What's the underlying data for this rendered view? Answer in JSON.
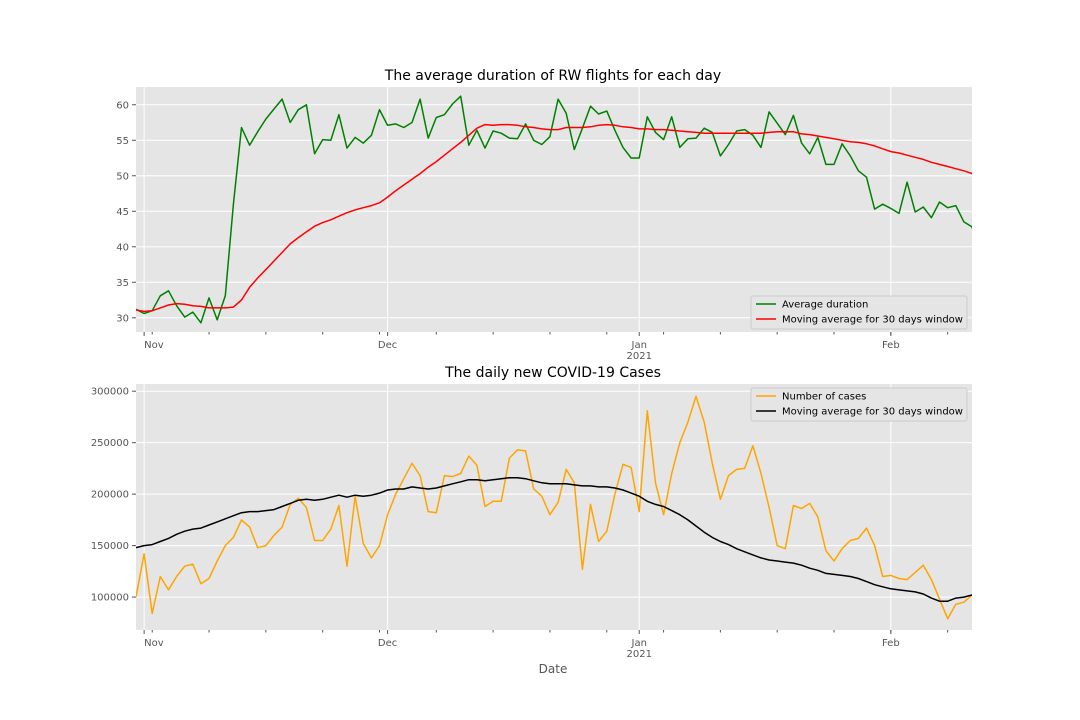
{
  "chart_data": [
    {
      "type": "line",
      "title": "The average duration of RW flights for each day",
      "xlabel": "",
      "ylabel": "",
      "x_range": [
        "2020-10-31",
        "2021-02-11"
      ],
      "ylim": [
        28,
        62.5
      ],
      "yticks": [
        30,
        35,
        40,
        45,
        50,
        55,
        60
      ],
      "xticks": [
        {
          "date": "2020-11-01",
          "label": "Nov",
          "sub": ""
        },
        {
          "date": "2020-12-01",
          "label": "Dec",
          "sub": ""
        },
        {
          "date": "2021-01-01",
          "label": "Jan",
          "sub": "2021"
        },
        {
          "date": "2021-02-01",
          "label": "Feb",
          "sub": ""
        }
      ],
      "grid": true,
      "legend": "lower-right",
      "start_date": "2020-10-31",
      "series": [
        {
          "name": "Average duration",
          "color": "#008000",
          "values": [
            31.2,
            30.6,
            31.0,
            33.1,
            33.8,
            31.7,
            30.1,
            30.8,
            29.3,
            32.8,
            29.7,
            33.1,
            46.0,
            56.8,
            54.3,
            56.2,
            58.0,
            59.4,
            60.8,
            57.5,
            59.3,
            60.0,
            53.1,
            55.1,
            55.0,
            58.6,
            53.9,
            55.4,
            54.6,
            55.7,
            59.3,
            57.1,
            57.3,
            56.8,
            57.5,
            60.8,
            55.3,
            58.2,
            58.6,
            60.1,
            61.2,
            54.3,
            56.4,
            53.9,
            56.3,
            56.0,
            55.3,
            55.2,
            57.3,
            55.0,
            54.4,
            55.5,
            60.8,
            58.8,
            53.7,
            56.7,
            59.8,
            58.7,
            59.1,
            56.4,
            54.0,
            52.5,
            52.5,
            58.3,
            56.1,
            55.1,
            58.3,
            54.0,
            55.2,
            55.3,
            56.7,
            56.1,
            52.8,
            54.4,
            56.3,
            56.5,
            55.7,
            54.0,
            59.0,
            57.4,
            55.8,
            58.5,
            54.6,
            53.1,
            55.4,
            51.6,
            51.6,
            54.5,
            52.8,
            50.7,
            49.8,
            45.3,
            46.0,
            45.4,
            44.7,
            49.1,
            44.9,
            45.6,
            44.1,
            46.3,
            45.5,
            45.8,
            43.5,
            42.8,
            39.3
          ]
        },
        {
          "name": "Moving average for 30 days window",
          "color": "#ff0000",
          "values": [
            31.1,
            30.9,
            31.0,
            31.4,
            31.8,
            32.0,
            31.9,
            31.7,
            31.6,
            31.4,
            31.4,
            31.4,
            31.5,
            32.5,
            34.3,
            35.6,
            36.8,
            38.0,
            39.2,
            40.4,
            41.3,
            42.1,
            42.9,
            43.4,
            43.8,
            44.3,
            44.8,
            45.2,
            45.5,
            45.8,
            46.2,
            47.0,
            47.9,
            48.7,
            49.5,
            50.3,
            51.2,
            52.0,
            52.9,
            53.8,
            54.7,
            55.7,
            56.7,
            57.2,
            57.1,
            57.2,
            57.2,
            57.1,
            56.9,
            56.8,
            56.6,
            56.5,
            56.5,
            56.8,
            56.8,
            56.8,
            56.9,
            57.1,
            57.2,
            57.1,
            56.9,
            56.8,
            56.6,
            56.6,
            56.5,
            56.5,
            56.4,
            56.3,
            56.2,
            56.1,
            56.0,
            56.0,
            56.0,
            56.0,
            56.0,
            56.0,
            56.0,
            56.0,
            56.1,
            56.2,
            56.2,
            56.2,
            55.9,
            55.8,
            55.6,
            55.4,
            55.2,
            55.0,
            54.8,
            54.7,
            54.5,
            54.2,
            53.8,
            53.4,
            53.2,
            52.9,
            52.6,
            52.3,
            51.9,
            51.6,
            51.3,
            51.0,
            50.7,
            50.3,
            49.9
          ]
        }
      ]
    },
    {
      "type": "line",
      "title": "The daily new COVID-19 Cases",
      "xlabel": "Date",
      "ylabel": "",
      "x_range": [
        "2020-10-31",
        "2021-02-11"
      ],
      "ylim": [
        68000,
        307000
      ],
      "yticks": [
        100000,
        150000,
        200000,
        250000,
        300000
      ],
      "xticks": [
        {
          "date": "2020-11-01",
          "label": "Nov",
          "sub": ""
        },
        {
          "date": "2020-12-01",
          "label": "Dec",
          "sub": ""
        },
        {
          "date": "2021-01-01",
          "label": "Jan",
          "sub": "2021"
        },
        {
          "date": "2021-02-01",
          "label": "Feb",
          "sub": ""
        }
      ],
      "grid": true,
      "legend": "upper-right",
      "start_date": "2020-10-31",
      "series": [
        {
          "name": "Number of cases",
          "color": "#ffa500",
          "values": [
            100000,
            142000,
            84000,
            120000,
            107000,
            120000,
            130000,
            132000,
            113000,
            118000,
            135000,
            150000,
            158000,
            175000,
            168000,
            148000,
            150000,
            160000,
            168000,
            190000,
            196000,
            187000,
            155000,
            155000,
            166000,
            189000,
            130000,
            198000,
            152000,
            138000,
            150000,
            180000,
            200000,
            215000,
            230000,
            218000,
            183000,
            182000,
            218000,
            217000,
            220000,
            237000,
            228000,
            188000,
            193000,
            193000,
            235000,
            243000,
            242000,
            205000,
            198000,
            180000,
            192000,
            224000,
            211000,
            127000,
            190000,
            154000,
            164000,
            200000,
            229000,
            226000,
            183000,
            281000,
            211000,
            180000,
            220000,
            250000,
            270000,
            295000,
            270000,
            230000,
            195000,
            218000,
            224000,
            225000,
            247000,
            220000,
            187000,
            150000,
            147000,
            189000,
            186000,
            191000,
            178000,
            145000,
            135000,
            147000,
            155000,
            157000,
            167000,
            150000,
            120000,
            121000,
            118000,
            117000,
            124000,
            131000,
            117000,
            98000,
            79000,
            93000,
            95000,
            102000,
            101000
          ]
        },
        {
          "name": "Moving average for 30 days window",
          "color": "#000000",
          "values": [
            148000,
            150000,
            151000,
            154000,
            157000,
            161000,
            164000,
            166000,
            167000,
            170000,
            173000,
            176000,
            179000,
            182000,
            183000,
            183000,
            184000,
            185000,
            188000,
            191000,
            194000,
            195000,
            194000,
            195000,
            197000,
            199000,
            197000,
            199000,
            198000,
            199000,
            201000,
            204000,
            205000,
            205000,
            207000,
            206000,
            205000,
            206000,
            208000,
            210000,
            212000,
            214000,
            214000,
            213000,
            214000,
            215000,
            216000,
            216000,
            215000,
            213000,
            211000,
            210000,
            210000,
            210000,
            209000,
            208000,
            208000,
            207000,
            207000,
            206000,
            204000,
            201000,
            198000,
            193000,
            190000,
            188000,
            184000,
            180000,
            175000,
            169000,
            163000,
            158000,
            154000,
            151000,
            147000,
            144000,
            141000,
            138000,
            136000,
            135000,
            134000,
            133000,
            131000,
            128000,
            126000,
            123000,
            122000,
            121000,
            120000,
            118000,
            115000,
            112000,
            110000,
            108000,
            107000,
            106000,
            105000,
            103000,
            99000,
            96000,
            96000,
            99000,
            100000,
            102000,
            101000
          ]
        }
      ]
    }
  ]
}
